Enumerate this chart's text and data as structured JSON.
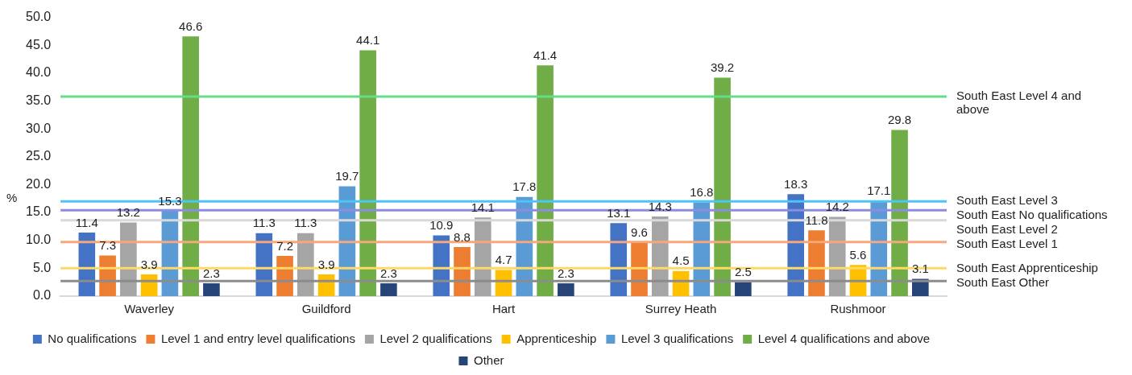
{
  "chart_data": {
    "type": "bar",
    "ylabel": "%",
    "categories": [
      "Waverley",
      "Guildford",
      "Hart",
      "Surrey Heath",
      "Rushmoor"
    ],
    "series": [
      {
        "name": "No qualifications",
        "color": "#4472c4",
        "values": [
          11.4,
          11.3,
          10.9,
          13.1,
          18.3
        ]
      },
      {
        "name": "Level 1 and entry level qualifications",
        "color": "#ed7d31",
        "values": [
          7.3,
          7.2,
          8.8,
          9.6,
          11.8
        ]
      },
      {
        "name": "Level 2 qualifications",
        "color": "#a5a5a5",
        "values": [
          13.2,
          11.3,
          14.1,
          14.3,
          14.2
        ]
      },
      {
        "name": "Apprenticeship",
        "color": "#ffc000",
        "values": [
          3.9,
          3.9,
          4.7,
          4.5,
          5.6
        ]
      },
      {
        "name": "Level 3 qualifications",
        "color": "#5b9bd5",
        "values": [
          15.3,
          19.7,
          17.8,
          16.8,
          17.1
        ]
      },
      {
        "name": "Level 4 qualifications and above",
        "color": "#70ad47",
        "values": [
          46.6,
          44.1,
          41.4,
          39.2,
          29.8
        ]
      },
      {
        "name": "Other",
        "color": "#264478",
        "values": [
          2.3,
          2.3,
          2.3,
          2.5,
          3.1
        ]
      }
    ],
    "ylim": [
      0,
      50
    ],
    "yticks": [
      {
        "value": 0,
        "label": "0.0"
      },
      {
        "value": 5,
        "label": "5.0"
      },
      {
        "value": 10,
        "label": "10.0"
      },
      {
        "value": 15,
        "label": "15.0"
      },
      {
        "value": 20,
        "label": "20.0"
      },
      {
        "value": 25,
        "label": "25.0"
      },
      {
        "value": 30,
        "label": "30.0"
      },
      {
        "value": 35,
        "label": "35.0"
      },
      {
        "value": 40,
        "label": "40.0"
      },
      {
        "value": 45,
        "label": "45.0"
      },
      {
        "value": 50,
        "label": "50.0"
      }
    ],
    "ref_lines": [
      {
        "axis": "y",
        "value": 35.8,
        "label": "South East Level 4 and above",
        "color": "#66dd88"
      },
      {
        "axis": "y",
        "value": 17.0,
        "label": "South East Level 3",
        "color": "#4fc3f7"
      },
      {
        "axis": "y",
        "value": 15.4,
        "label": "South East No qualifications",
        "color": "#8c8ce0"
      },
      {
        "axis": "y",
        "value": 13.6,
        "label": "South East Level 2",
        "color": "#d9d9d9"
      },
      {
        "axis": "y",
        "value": 9.7,
        "label": "South East Level 1",
        "color": "#f8a77a"
      },
      {
        "axis": "y",
        "value": 5.0,
        "label": "South East Apprenticeship",
        "color": "#ffd966"
      },
      {
        "axis": "y",
        "value": 2.7,
        "label": "South East Other",
        "color": "#8c8c8c"
      }
    ],
    "data_labels": true,
    "grid": false,
    "legend": "bottom"
  }
}
